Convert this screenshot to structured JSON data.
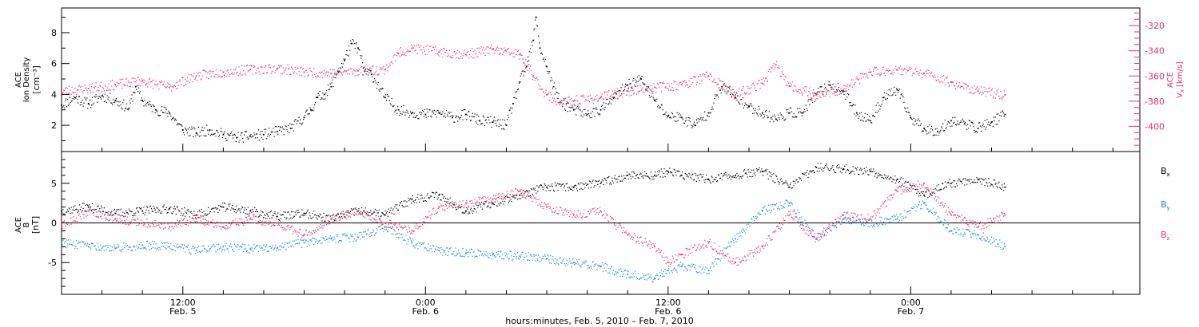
{
  "chart_data": [
    {
      "type": "scatter",
      "panel": "top",
      "ylabel_lines": [
        "ACE",
        "Ion Density",
        "[cm⁻³]"
      ],
      "ylim": [
        0.3,
        9.6
      ],
      "yticks": [
        2,
        4,
        6,
        8
      ],
      "y2label_lines": [
        "ACE",
        "V",
        "x",
        "[km/s]"
      ],
      "y2lim": [
        -420,
        -306
      ],
      "y2ticks": [
        -400,
        -380,
        -360,
        -340,
        -320
      ],
      "series": [
        {
          "role": "density",
          "color": "#000000",
          "x": [
            0,
            1,
            2,
            3,
            4,
            5,
            5.5,
            6,
            7,
            8,
            9,
            10,
            11,
            12,
            13,
            14,
            15,
            16,
            17,
            18,
            18.5,
            19,
            19.5,
            20,
            20.5,
            21,
            21.5,
            22,
            22.5,
            23,
            24,
            25,
            26,
            27,
            28,
            29,
            30,
            31,
            32,
            33,
            33.5,
            34,
            34.5,
            35,
            35.2,
            35.5,
            36,
            36.5,
            37,
            38,
            39,
            40,
            41,
            42,
            43,
            44,
            45,
            46,
            47,
            48,
            49,
            50,
            51,
            52,
            53,
            54,
            55,
            56,
            57,
            58,
            59,
            60,
            61,
            62,
            63,
            64,
            65,
            66,
            67,
            68,
            69,
            70
          ],
          "y": [
            3.3,
            3.8,
            3.4,
            3.9,
            3.6,
            3.1,
            4.5,
            3.6,
            3.0,
            2.8,
            1.7,
            1.5,
            1.7,
            1.4,
            1.2,
            1.3,
            1.4,
            1.6,
            1.8,
            2.5,
            3.0,
            3.8,
            4.0,
            4.5,
            5.5,
            6.2,
            7.3,
            7.0,
            5.5,
            5.3,
            3.8,
            3.0,
            2.8,
            2.7,
            2.8,
            2.5,
            2.7,
            2.3,
            2.2,
            2.0,
            3.4,
            4.8,
            5.8,
            7.5,
            9.0,
            7.0,
            5.8,
            4.5,
            3.5,
            3.0,
            2.7,
            3.0,
            3.8,
            4.6,
            5.0,
            3.6,
            2.6,
            2.5,
            2.0,
            2.8,
            4.5,
            3.8,
            3.2,
            2.8,
            2.4,
            2.8,
            2.8,
            4.0,
            4.6,
            4.2,
            2.8,
            2.3,
            3.8,
            4.3,
            2.5,
            1.8,
            1.6,
            2.3,
            2.1,
            1.8,
            2.2,
            2.7
          ]
        },
        {
          "role": "vx",
          "color": "#e8336b",
          "x": [
            0,
            2,
            4,
            6,
            8,
            10,
            12,
            14,
            16,
            18,
            20,
            22,
            24,
            25,
            26,
            28,
            30,
            32,
            34,
            35,
            36,
            37,
            38,
            40,
            42,
            44,
            46,
            48,
            50,
            52,
            53,
            54,
            56,
            58,
            60,
            62,
            64,
            66,
            68,
            70
          ],
          "y": [
            -372,
            -370,
            -367,
            -364,
            -369,
            -360,
            -357,
            -355,
            -354,
            -357,
            -358,
            -356,
            -355,
            -342,
            -338,
            -341,
            -343,
            -339,
            -343,
            -360,
            -375,
            -381,
            -380,
            -377,
            -372,
            -369,
            -367,
            -360,
            -375,
            -366,
            -351,
            -368,
            -375,
            -371,
            -357,
            -355,
            -358,
            -365,
            -372,
            -375
          ]
        }
      ]
    },
    {
      "type": "scatter",
      "panel": "bottom",
      "ylabel_lines": [
        "ACE",
        "B",
        "[nT]"
      ],
      "ylim": [
        -9,
        9
      ],
      "yticks": [
        -5,
        0,
        5
      ],
      "zero_line": true,
      "xlabel": "hours:minutes, Feb.  5, 2010 – Feb.  7, 2010",
      "xlim": [
        0,
        80
      ],
      "xticks": [
        {
          "x": 9,
          "top": "12:00",
          "bottom": "Feb. 5"
        },
        {
          "x": 27,
          "top": "0:00",
          "bottom": "Feb. 6"
        },
        {
          "x": 45,
          "top": "12:00",
          "bottom": "Feb. 6"
        },
        {
          "x": 63,
          "top": "0:00",
          "bottom": "Feb. 7"
        }
      ],
      "legend_placement": "right",
      "series": [
        {
          "name": "B",
          "sub": "x",
          "color": "#000000",
          "x": [
            0,
            2,
            4,
            6,
            8,
            10,
            12,
            14,
            16,
            18,
            20,
            22,
            24,
            26,
            28,
            30,
            32,
            34,
            36,
            38,
            40,
            42,
            44,
            45,
            46,
            48,
            50,
            52,
            54,
            56,
            58,
            60,
            62,
            64,
            66,
            68,
            70
          ],
          "y": [
            1.5,
            2.0,
            1.2,
            1.5,
            1.8,
            1.0,
            2.0,
            1.5,
            0.8,
            1.2,
            0.5,
            1.5,
            1.0,
            3.0,
            3.5,
            1.5,
            2.5,
            3.5,
            4.5,
            4.5,
            5.0,
            6.0,
            6.0,
            6.5,
            6.0,
            5.5,
            6.0,
            6.5,
            4.5,
            7.0,
            6.8,
            6.5,
            5.5,
            3.5,
            5.0,
            5.5,
            4.5
          ]
        },
        {
          "name": "B",
          "sub": "y",
          "color": "#1f8ad8",
          "x": [
            0,
            2,
            4,
            6,
            8,
            10,
            12,
            14,
            16,
            18,
            20,
            22,
            24,
            26,
            28,
            30,
            32,
            34,
            36,
            38,
            40,
            42,
            44,
            45,
            46,
            48,
            50,
            52,
            54,
            56,
            58,
            60,
            62,
            64,
            66,
            68,
            70
          ],
          "y": [
            -2.5,
            -3.0,
            -3.2,
            -2.8,
            -3.0,
            -3.5,
            -3.0,
            -3.3,
            -3.2,
            -2.5,
            -2.0,
            -1.8,
            -0.5,
            -2.5,
            -3.5,
            -3.8,
            -4.0,
            -4.2,
            -4.5,
            -5.0,
            -5.5,
            -6.5,
            -7.0,
            -6.0,
            -5.5,
            -6.0,
            -2.0,
            1.5,
            2.5,
            -2.0,
            0.5,
            0.0,
            0.5,
            2.5,
            -1.0,
            -1.5,
            -3.0
          ]
        },
        {
          "name": "B",
          "sub": "z",
          "color": "#e8336b",
          "x": [
            0,
            2,
            4,
            6,
            8,
            10,
            12,
            14,
            16,
            18,
            20,
            22,
            24,
            26,
            28,
            30,
            32,
            34,
            36,
            38,
            40,
            42,
            44,
            45,
            46,
            48,
            50,
            52,
            54,
            56,
            58,
            60,
            62,
            64,
            66,
            68,
            70
          ],
          "y": [
            -0.5,
            1.5,
            0.5,
            0.0,
            -0.5,
            0.5,
            -0.5,
            0.5,
            0.0,
            -1.5,
            0.5,
            1.5,
            0.0,
            -1.0,
            2.0,
            2.5,
            3.0,
            4.0,
            2.0,
            1.0,
            1.5,
            -1.5,
            -3.0,
            -5.0,
            -4.0,
            -2.5,
            -5.0,
            -3.0,
            1.0,
            -2.0,
            1.0,
            0.5,
            4.0,
            5.0,
            1.0,
            -0.5,
            1.0
          ]
        }
      ]
    }
  ]
}
